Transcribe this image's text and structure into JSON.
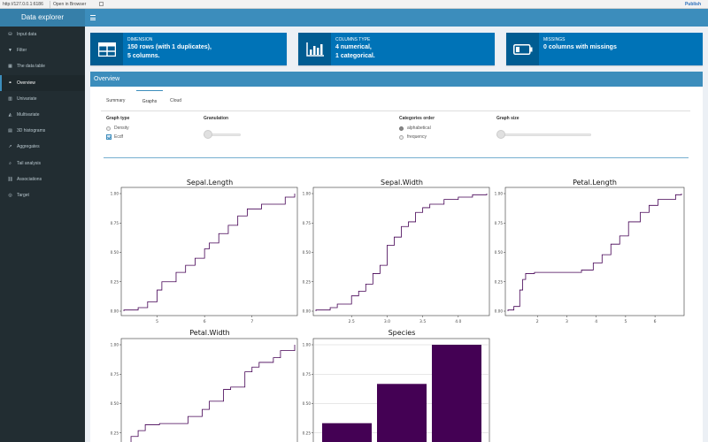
{
  "browser": {
    "url": "http://127.0.0.1:6186",
    "open_in_browser": "Open in Browser",
    "publish": "Publish"
  },
  "app": {
    "logo": "Data explorer"
  },
  "sidebar": {
    "items": [
      {
        "label": "Input data",
        "icon": "database-icon"
      },
      {
        "label": "Filter",
        "icon": "filter-icon"
      },
      {
        "label": "The data table",
        "icon": "table-icon"
      },
      {
        "label": "Overview",
        "icon": "binoculars-icon",
        "active": true
      },
      {
        "label": "Univariate",
        "icon": "bar-chart-icon"
      },
      {
        "label": "Multivariate",
        "icon": "area-chart-icon"
      },
      {
        "label": "3D histograms",
        "icon": "histogram-icon"
      },
      {
        "label": "Aggregates",
        "icon": "line-chart-icon"
      },
      {
        "label": "Tail analysis",
        "icon": "search-icon"
      },
      {
        "label": "Associations",
        "icon": "sitemap-icon"
      },
      {
        "label": "Target",
        "icon": "target-icon"
      }
    ]
  },
  "infoboxes": [
    {
      "label": "Dimension",
      "line1": "150 rows (with 1 duplicates),",
      "line2": "5 columns.",
      "icon": "table-icon"
    },
    {
      "label": "Columns type",
      "line1": "4 numerical,",
      "line2": "1 categorical.",
      "icon": "bar-chart-icon"
    },
    {
      "label": "Missings",
      "line1": "0 columns with missings",
      "line2": "",
      "icon": "battery-icon"
    }
  ],
  "overview": {
    "title": "Overview",
    "tabs": [
      "Summary",
      "Graphs",
      "Cloud"
    ],
    "active_tab": "Graphs",
    "controls": {
      "graph_type": {
        "title": "Graph type",
        "options": [
          "Density",
          "Ecdf"
        ],
        "selected": "Ecdf"
      },
      "granulation": {
        "title": "Granulation"
      },
      "categories_order": {
        "title": "Categories order",
        "options": [
          "alphabetical",
          "frequency"
        ],
        "selected": "alphabetical"
      },
      "graph_size": {
        "title": "Graph size"
      }
    }
  },
  "colors": {
    "accent": "#3c8dbc",
    "sidebar": "#222d32",
    "infobox": "#0073b7",
    "ecdf_line": "#440154",
    "bar_fill": "#440154"
  },
  "chart_data": [
    {
      "type": "line",
      "title": "Sepal.Length",
      "step": true,
      "x": [
        4.3,
        4.6,
        4.8,
        5.0,
        5.1,
        5.4,
        5.6,
        5.8,
        6.0,
        6.1,
        6.3,
        6.5,
        6.7,
        6.9,
        7.2,
        7.7,
        7.9
      ],
      "y": [
        0.01,
        0.03,
        0.08,
        0.18,
        0.25,
        0.33,
        0.39,
        0.45,
        0.53,
        0.58,
        0.66,
        0.73,
        0.81,
        0.87,
        0.91,
        0.97,
        1.0
      ],
      "xlim": [
        4.3,
        7.9
      ],
      "ylim": [
        0,
        1
      ],
      "xticks": [
        5,
        6,
        7
      ],
      "yticks": [
        0.0,
        0.25,
        0.5,
        0.75,
        1.0
      ],
      "ytick_labels": [
        "0.00",
        "0.25",
        "0.50",
        "0.75",
        "1.00"
      ]
    },
    {
      "type": "line",
      "title": "Sepal.Width",
      "step": true,
      "x": [
        2.0,
        2.2,
        2.3,
        2.5,
        2.6,
        2.7,
        2.8,
        2.9,
        3.0,
        3.1,
        3.2,
        3.3,
        3.4,
        3.5,
        3.6,
        3.8,
        4.0,
        4.2,
        4.4
      ],
      "y": [
        0.01,
        0.03,
        0.06,
        0.13,
        0.17,
        0.23,
        0.32,
        0.39,
        0.56,
        0.63,
        0.72,
        0.76,
        0.84,
        0.88,
        0.91,
        0.95,
        0.97,
        0.99,
        1.0
      ],
      "xlim": [
        2.0,
        4.4
      ],
      "ylim": [
        0,
        1
      ],
      "xticks": [
        2.5,
        3.0,
        3.5,
        4.0
      ],
      "xtick_labels": [
        "2.5",
        "3.0",
        "3.5",
        "4.0"
      ],
      "yticks": [
        0.0,
        0.25,
        0.5,
        0.75,
        1.0
      ],
      "ytick_labels": [
        "0.00",
        "0.25",
        "0.50",
        "0.75",
        "1.00"
      ]
    },
    {
      "type": "line",
      "title": "Petal.Length",
      "step": true,
      "x": [
        1.0,
        1.2,
        1.4,
        1.5,
        1.6,
        1.9,
        3.0,
        3.5,
        3.9,
        4.2,
        4.5,
        4.8,
        5.1,
        5.5,
        5.8,
        6.1,
        6.7,
        6.9
      ],
      "y": [
        0.01,
        0.04,
        0.18,
        0.27,
        0.32,
        0.33,
        0.33,
        0.35,
        0.41,
        0.48,
        0.57,
        0.64,
        0.76,
        0.84,
        0.9,
        0.95,
        0.99,
        1.0
      ],
      "xlim": [
        1.0,
        6.9
      ],
      "ylim": [
        0,
        1
      ],
      "xticks": [
        2,
        3,
        4,
        5,
        6
      ],
      "yticks": [
        0.0,
        0.25,
        0.5,
        0.75,
        1.0
      ],
      "ytick_labels": [
        "0.00",
        "0.25",
        "0.50",
        "0.75",
        "1.00"
      ]
    },
    {
      "type": "line",
      "title": "Petal.Width",
      "step": true,
      "x": [
        0.1,
        0.2,
        0.3,
        0.4,
        0.6,
        1.0,
        1.2,
        1.3,
        1.5,
        1.6,
        1.8,
        1.9,
        2.0,
        2.2,
        2.3,
        2.5
      ],
      "y": [
        0.03,
        0.22,
        0.27,
        0.32,
        0.33,
        0.39,
        0.45,
        0.52,
        0.62,
        0.64,
        0.77,
        0.81,
        0.85,
        0.89,
        0.95,
        1.0
      ],
      "xlim": [
        0.1,
        2.5
      ],
      "ylim": [
        0,
        1
      ],
      "yticks": [
        0.25,
        0.5,
        0.75,
        1.0
      ],
      "ytick_labels": [
        "0.25",
        "0.50",
        "0.75",
        "1.00"
      ]
    },
    {
      "type": "bar",
      "title": "Species",
      "values": [
        0.333,
        0.667,
        1.0
      ],
      "ylim": [
        0,
        1
      ],
      "yticks": [
        0.25,
        0.5,
        0.75,
        1.0
      ],
      "ytick_labels": [
        "0.25",
        "0.50",
        "0.75",
        "1.00"
      ]
    }
  ]
}
